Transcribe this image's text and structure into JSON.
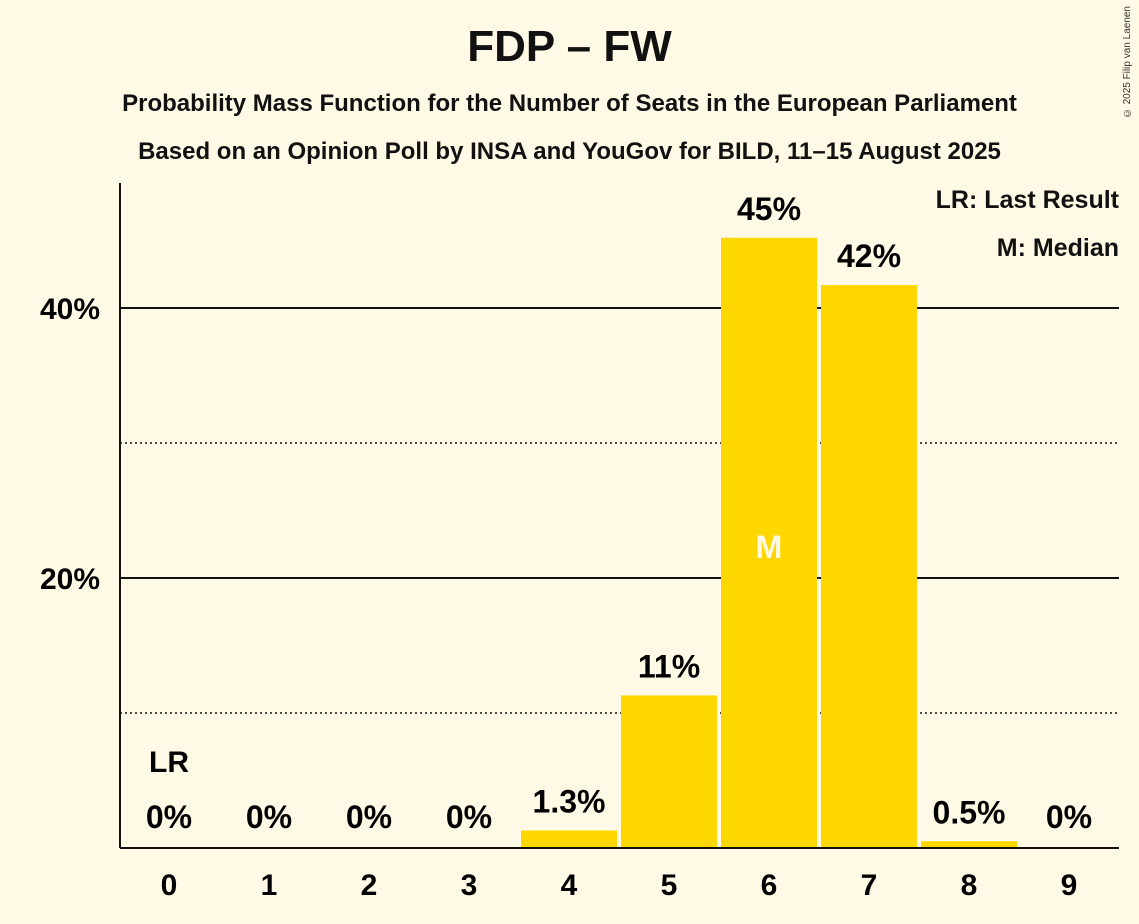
{
  "title": "FDP – FW",
  "subtitle": "Probability Mass Function for the Number of Seats in the European Parliament",
  "subtitle2": "Based on an Opinion Poll by INSA and YouGov for BILD, 11–15 August 2025",
  "copyright": "© 2025 Filip van Laenen",
  "legend": {
    "last_result": "LR: Last Result",
    "median": "M: Median"
  },
  "colors": {
    "bar": "#FFD700",
    "background": "#FFF9E5",
    "axis": "#111111"
  },
  "chart_data": {
    "type": "bar",
    "categories": [
      "0",
      "1",
      "2",
      "3",
      "4",
      "5",
      "6",
      "7",
      "8",
      "9"
    ],
    "values": [
      0,
      0,
      0,
      0,
      1.3,
      11.3,
      45.2,
      41.7,
      0.5,
      0
    ],
    "labels": [
      "0%",
      "0%",
      "0%",
      "0%",
      "1.3%",
      "11%",
      "45%",
      "42%",
      "0.5%",
      "0%"
    ],
    "ylim": [
      0,
      50
    ],
    "yticks": [
      20,
      40
    ],
    "ytick_labels": [
      "20%",
      "40%"
    ],
    "minor_grid": [
      10,
      30
    ],
    "last_result": {
      "index": 0,
      "label": "LR"
    },
    "median": {
      "index": 6,
      "label": "M"
    },
    "legend_position": "top-right",
    "xlabel": "",
    "ylabel": ""
  }
}
